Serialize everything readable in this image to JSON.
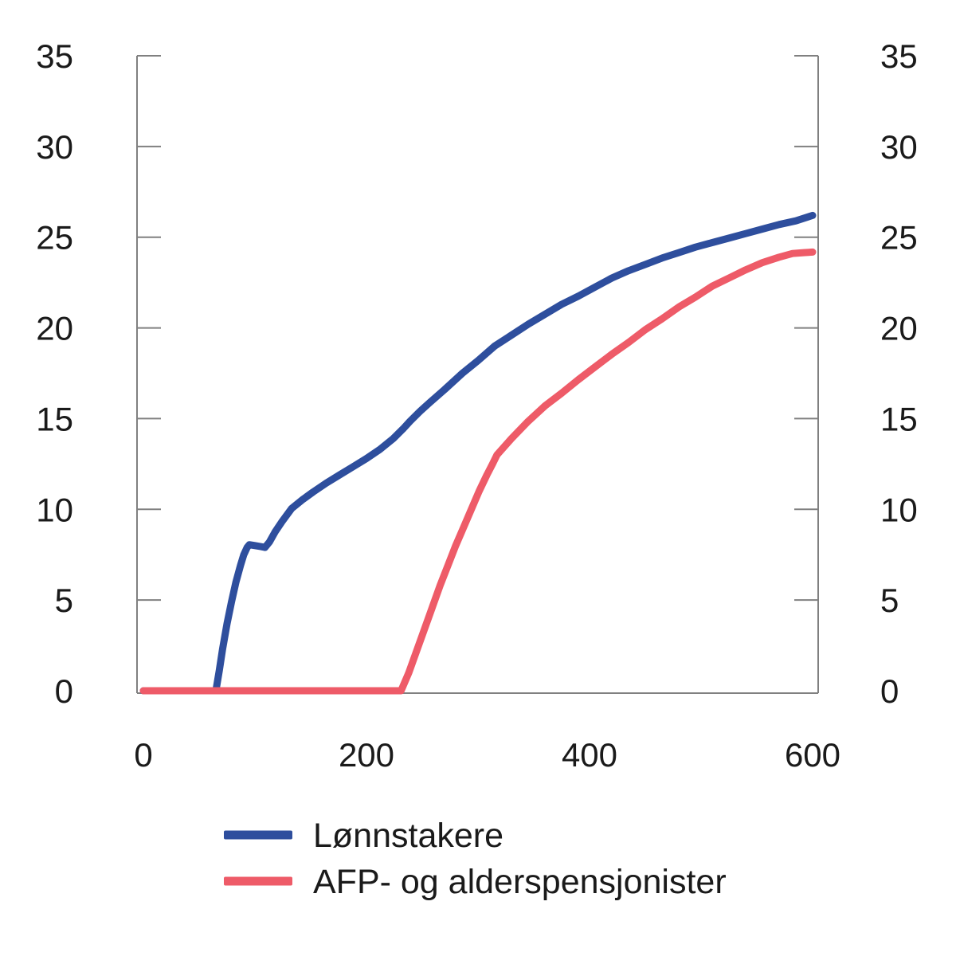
{
  "figure": {
    "background": "#ffffff",
    "text_color": "#1a1a1a",
    "axis_color": "#808080"
  },
  "chart_data": {
    "type": "line",
    "title": "",
    "xlabel": "",
    "ylabel": "",
    "xlim": [
      0,
      600
    ],
    "ylim": [
      0,
      35
    ],
    "x_ticks": [
      0,
      200,
      400,
      600
    ],
    "y_ticks": [
      0,
      5,
      10,
      15,
      20,
      25,
      30,
      35
    ],
    "grid": false,
    "dual_y_axis": true,
    "legend_position": "bottom-left",
    "series": [
      {
        "name": "Lønnstakere",
        "color": "#2E4E9D",
        "points": [
          [
            0,
            0
          ],
          [
            60,
            0
          ],
          [
            65,
            0
          ],
          [
            68,
            1.1
          ],
          [
            71,
            2.3
          ],
          [
            75,
            3.7
          ],
          [
            79,
            4.9
          ],
          [
            83,
            6.0
          ],
          [
            87,
            6.9
          ],
          [
            90,
            7.5
          ],
          [
            93,
            7.9
          ],
          [
            95,
            8.05
          ],
          [
            100,
            8.0
          ],
          [
            105,
            7.95
          ],
          [
            109,
            7.9
          ],
          [
            113,
            8.2
          ],
          [
            118,
            8.75
          ],
          [
            124,
            9.3
          ],
          [
            133,
            10.05
          ],
          [
            143,
            10.55
          ],
          [
            152,
            10.95
          ],
          [
            164,
            11.45
          ],
          [
            176,
            11.9
          ],
          [
            188,
            12.35
          ],
          [
            200,
            12.8
          ],
          [
            212,
            13.3
          ],
          [
            224,
            13.9
          ],
          [
            233,
            14.45
          ],
          [
            239,
            14.85
          ],
          [
            248,
            15.4
          ],
          [
            257,
            15.9
          ],
          [
            270,
            16.6
          ],
          [
            286,
            17.5
          ],
          [
            300,
            18.2
          ],
          [
            315,
            19.0
          ],
          [
            330,
            19.6
          ],
          [
            345,
            20.2
          ],
          [
            360,
            20.75
          ],
          [
            375,
            21.3
          ],
          [
            390,
            21.75
          ],
          [
            405,
            22.25
          ],
          [
            420,
            22.75
          ],
          [
            435,
            23.15
          ],
          [
            450,
            23.5
          ],
          [
            465,
            23.85
          ],
          [
            480,
            24.15
          ],
          [
            495,
            24.45
          ],
          [
            510,
            24.7
          ],
          [
            525,
            24.95
          ],
          [
            540,
            25.2
          ],
          [
            555,
            25.45
          ],
          [
            570,
            25.7
          ],
          [
            585,
            25.9
          ],
          [
            600,
            26.2
          ]
        ]
      },
      {
        "name": "AFP- og alderspensjonister",
        "color": "#EE5B68",
        "points": [
          [
            0,
            0
          ],
          [
            225,
            0
          ],
          [
            231,
            0
          ],
          [
            238,
            1.0
          ],
          [
            245,
            2.2
          ],
          [
            252,
            3.4
          ],
          [
            259,
            4.6
          ],
          [
            266,
            5.8
          ],
          [
            273,
            6.9
          ],
          [
            280,
            8.0
          ],
          [
            287,
            9.0
          ],
          [
            294,
            10.0
          ],
          [
            301,
            11.0
          ],
          [
            308,
            11.9
          ],
          [
            313,
            12.5
          ],
          [
            317,
            13.0
          ],
          [
            330,
            13.9
          ],
          [
            345,
            14.85
          ],
          [
            360,
            15.7
          ],
          [
            375,
            16.4
          ],
          [
            390,
            17.15
          ],
          [
            405,
            17.85
          ],
          [
            420,
            18.55
          ],
          [
            435,
            19.2
          ],
          [
            450,
            19.9
          ],
          [
            465,
            20.5
          ],
          [
            480,
            21.15
          ],
          [
            495,
            21.7
          ],
          [
            510,
            22.3
          ],
          [
            525,
            22.75
          ],
          [
            540,
            23.2
          ],
          [
            555,
            23.6
          ],
          [
            570,
            23.9
          ],
          [
            582,
            24.1
          ],
          [
            592,
            24.15
          ],
          [
            600,
            24.18
          ]
        ]
      }
    ]
  }
}
